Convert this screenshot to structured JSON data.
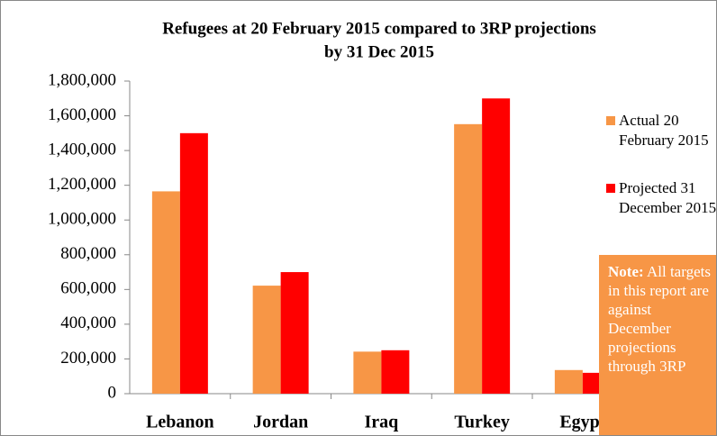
{
  "chart_data": {
    "type": "bar",
    "title": "Refugees at 20 February 2015 compared to 3RP projections",
    "subtitle": "by 31 Dec 2015",
    "categories": [
      "Lebanon",
      "Jordan",
      "Iraq",
      "Turkey",
      "Egypt"
    ],
    "series": [
      {
        "name": "Actual 20 February 2015",
        "color": "#f79646",
        "values": [
          1165000,
          622000,
          242000,
          1552000,
          136000
        ]
      },
      {
        "name": "Projected 31 December 2015",
        "color": "#ff0000",
        "values": [
          1500000,
          700000,
          250000,
          1700000,
          120000
        ]
      }
    ],
    "ylim": [
      0,
      1800000
    ],
    "yticks": [
      0,
      {
        "value": 200000,
        "label": "200,000"
      },
      {
        "value": 400000,
        "label": "400,000"
      },
      {
        "value": 600000,
        "label": "600,000"
      },
      {
        "value": 800000,
        "label": "800,000"
      },
      {
        "value": 1000000,
        "label": "1,000,000"
      },
      {
        "value": 1200000,
        "label": "1,200,000"
      },
      {
        "value": 1400000,
        "label": "1,400,000"
      },
      {
        "value": 1600000,
        "label": "1,600,000"
      },
      {
        "value": 1800000,
        "label": "1,800,000"
      }
    ],
    "legend": "right",
    "note": {
      "label": "Note:",
      "text": "All targets in this report are against December projections through 3RP"
    }
  }
}
